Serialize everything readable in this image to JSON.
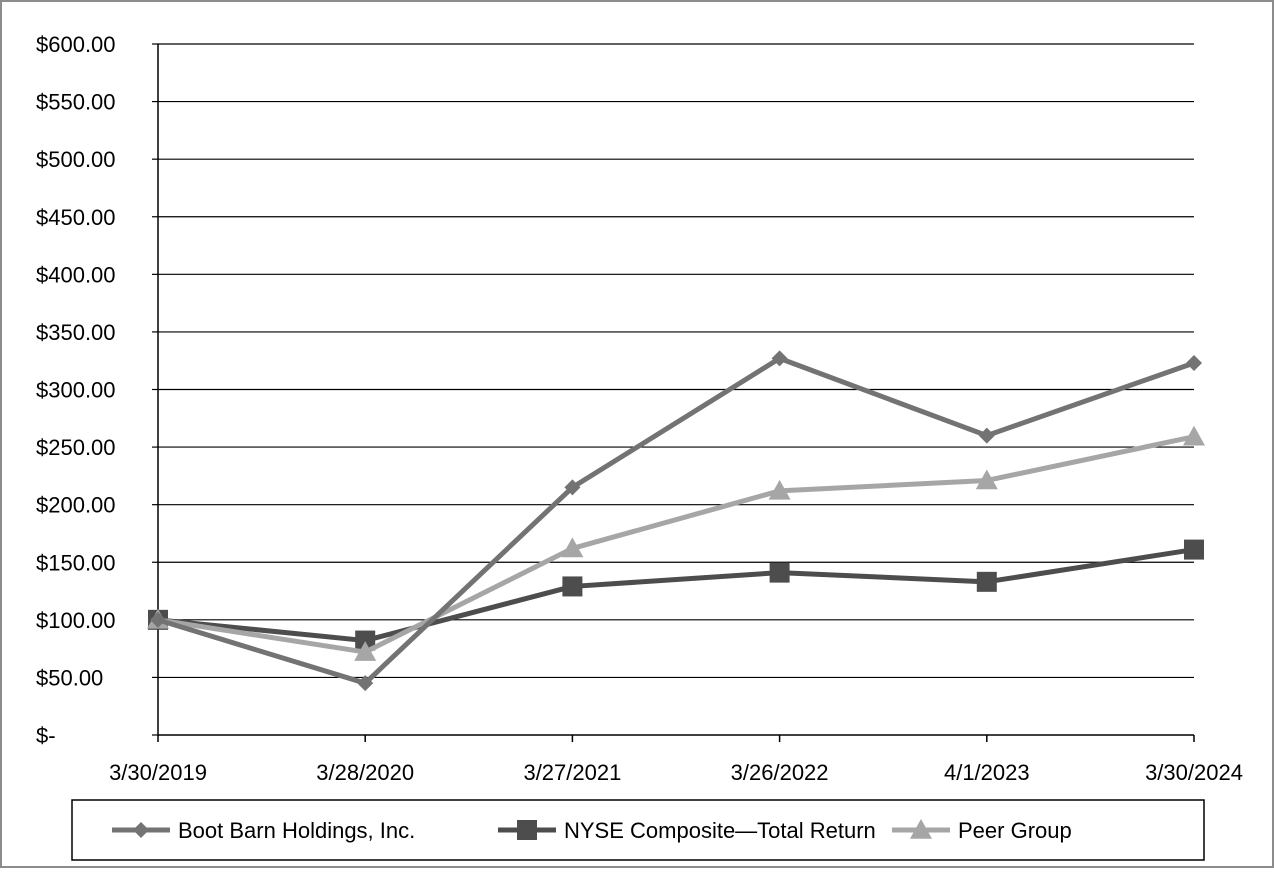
{
  "chart_data": {
    "type": "line",
    "title": "",
    "xlabel": "",
    "ylabel": "",
    "categories": [
      "3/30/2019",
      "3/28/2020",
      "3/27/2021",
      "3/26/2022",
      "4/1/2023",
      "3/30/2024"
    ],
    "ylim": [
      0,
      600
    ],
    "y_ticks": [
      0,
      50,
      100,
      150,
      200,
      250,
      300,
      350,
      400,
      450,
      500,
      550,
      600
    ],
    "y_tick_labels": [
      "$-",
      "$50.00",
      "$100.00",
      "$150.00",
      "$200.00",
      "$250.00",
      "$300.00",
      "$350.00",
      "$400.00",
      "$450.00",
      "$500.00",
      "$550.00",
      "$600.00"
    ],
    "grid": true,
    "legend_position": "bottom",
    "series": [
      {
        "name": "Boot Barn Holdings, Inc.",
        "marker": "diamond",
        "color": "#737373",
        "values": [
          100,
          45,
          215,
          327,
          260,
          323
        ]
      },
      {
        "name": "NYSE Composite—Total Return",
        "marker": "square",
        "color": "#4d4d4d",
        "values": [
          100,
          82,
          129,
          141,
          133,
          161
        ]
      },
      {
        "name": "Peer Group",
        "marker": "triangle",
        "color": "#a6a6a6",
        "values": [
          100,
          72,
          162,
          212,
          221,
          259
        ]
      }
    ]
  }
}
